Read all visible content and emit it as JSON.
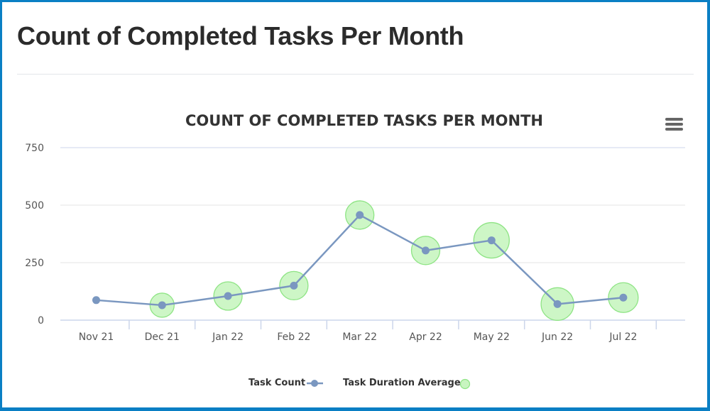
{
  "page": {
    "title": "Count of Completed Tasks Per Month"
  },
  "chart": {
    "menu_icon": "hamburger-menu-icon"
  },
  "colors": {
    "frame_border": "#0a7fc4",
    "line": "#7a97c0",
    "bubble_fill": "#c8f5c0",
    "bubble_stroke": "#8ee484",
    "grid": "#e6e6e6",
    "axis": "#ccd6eb",
    "title": "#333333"
  },
  "chart_data": {
    "type": "line",
    "title": "COUNT OF COMPLETED TASKS PER MONTH",
    "xlabel": "",
    "ylabel": "",
    "ylim": [
      0,
      750
    ],
    "yticks": [
      0,
      250,
      500,
      750
    ],
    "grid": true,
    "legend_position": "bottom-center",
    "categories": [
      "Nov 21",
      "Dec 21",
      "Jan 22",
      "Feb 22",
      "Mar 22",
      "Apr 22",
      "May 22",
      "Jun 22",
      "Jul 22"
    ],
    "series": [
      {
        "name": "Task Count",
        "type": "line",
        "values": [
          87,
          65,
          105,
          150,
          457,
          303,
          347,
          70,
          98
        ]
      },
      {
        "name": "Task Duration Average",
        "type": "bubble",
        "values": [
          87,
          65,
          105,
          150,
          457,
          303,
          347,
          70,
          98
        ],
        "relative_bubble_size": [
          0,
          17,
          20,
          20,
          20,
          20,
          25,
          23,
          21
        ]
      }
    ]
  }
}
